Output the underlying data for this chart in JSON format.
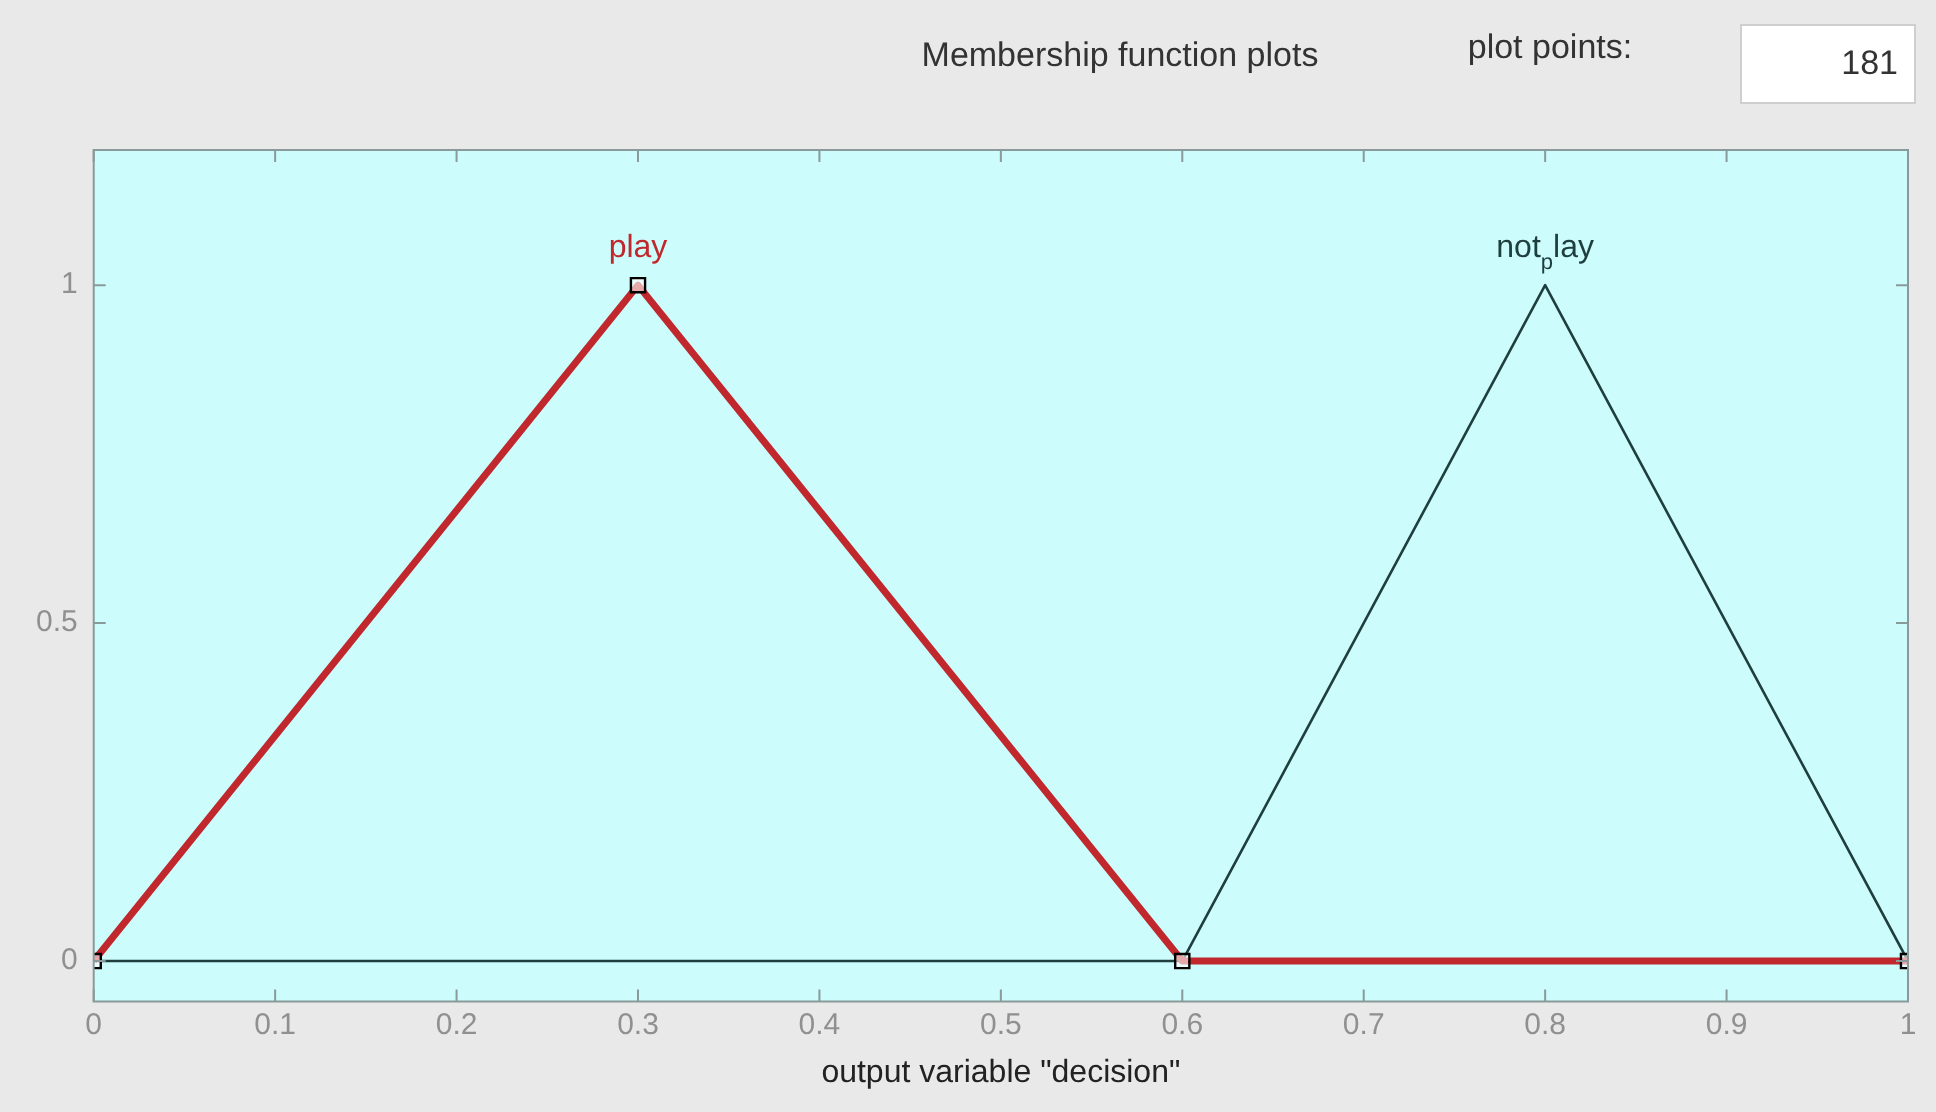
{
  "chart_data": {
    "type": "line",
    "title": "Membership function plots",
    "xlabel": "output variable \"decision\"",
    "annotations": [
      "plot points:",
      "181"
    ],
    "series": [
      {
        "name": "play",
        "color": "#c0282d",
        "x": [
          0,
          0.3,
          0.6,
          1
        ],
        "values": [
          0,
          1,
          0,
          0
        ],
        "marker": "square"
      },
      {
        "name": "not$_{p}$lay",
        "color": "#1f3f3f",
        "x": [
          0,
          0.6,
          0.8,
          1
        ],
        "values": [
          0,
          0,
          1,
          0
        ],
        "marker": "none"
      }
    ],
    "xlim": [
      0,
      1
    ],
    "xticks": [
      0,
      0.1,
      0.2,
      0.3,
      0.4,
      0.5,
      0.6,
      0.7,
      0.8,
      0.9,
      1
    ],
    "ylim": [
      -0.06,
      1.2
    ],
    "yticks": [
      0,
      0.5,
      1
    ],
    "grid": false,
    "legend": false,
    "line_style": "solid"
  }
}
